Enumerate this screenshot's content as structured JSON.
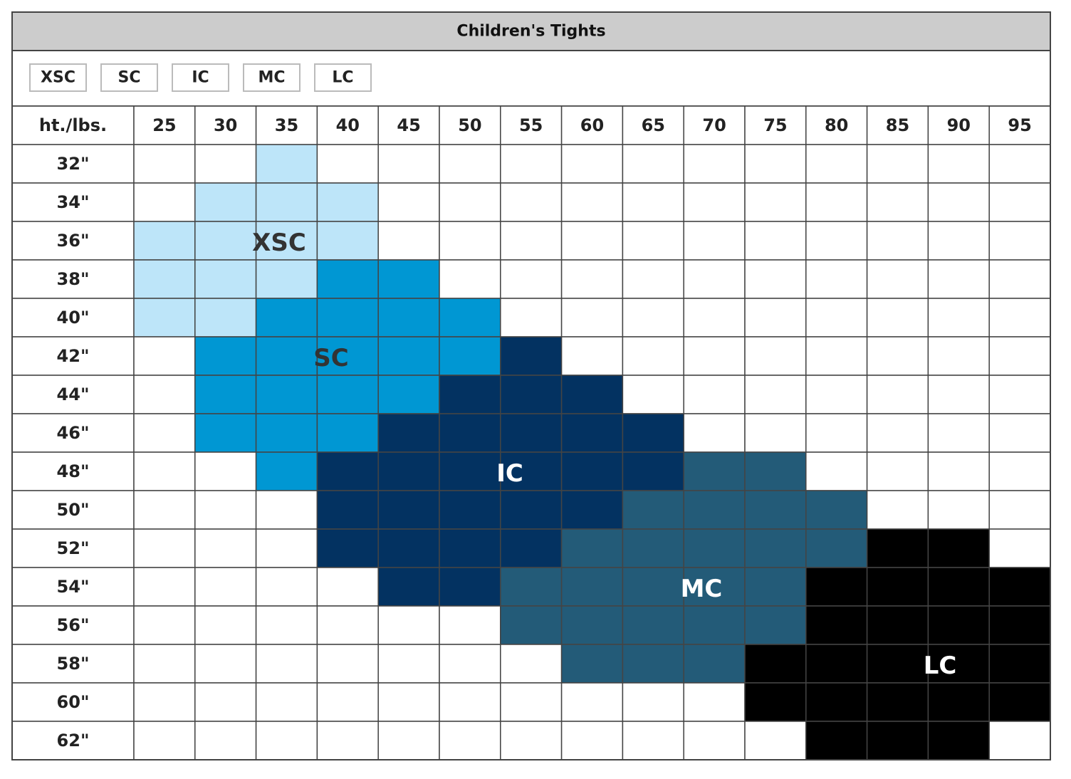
{
  "title": "Children's Tights",
  "sizes": [
    {
      "label": "XSC",
      "color": "#bde5f9",
      "text_color": "#333333"
    },
    {
      "label": "SC",
      "color": "#0097d3",
      "text_color": "#333333"
    },
    {
      "label": "IC",
      "color": "#033261",
      "text_color": "#ffffff"
    },
    {
      "label": "MC",
      "color": "#235b78",
      "text_color": "#ffffff"
    },
    {
      "label": "LC",
      "color": "#000000",
      "text_color": "#ffffff"
    }
  ],
  "corner_header": "ht./lbs.",
  "weights": [
    25,
    30,
    35,
    40,
    45,
    50,
    55,
    60,
    65,
    70,
    75,
    80,
    85,
    90,
    95
  ],
  "rows": [
    {
      "height": "32\"",
      "fills": [
        null,
        null,
        0,
        null,
        null,
        null,
        null,
        null,
        null,
        null,
        null,
        null,
        null,
        null,
        null
      ]
    },
    {
      "height": "34\"",
      "fills": [
        null,
        0,
        0,
        0,
        null,
        null,
        null,
        null,
        null,
        null,
        null,
        null,
        null,
        null,
        null
      ]
    },
    {
      "height": "36\"",
      "fills": [
        0,
        0,
        0,
        0,
        null,
        null,
        null,
        null,
        null,
        null,
        null,
        null,
        null,
        null,
        null
      ]
    },
    {
      "height": "38\"",
      "fills": [
        0,
        0,
        0,
        1,
        1,
        null,
        null,
        null,
        null,
        null,
        null,
        null,
        null,
        null,
        null
      ]
    },
    {
      "height": "40\"",
      "fills": [
        0,
        0,
        1,
        1,
        1,
        1,
        null,
        null,
        null,
        null,
        null,
        null,
        null,
        null,
        null
      ]
    },
    {
      "height": "42\"",
      "fills": [
        null,
        1,
        1,
        1,
        1,
        1,
        2,
        null,
        null,
        null,
        null,
        null,
        null,
        null,
        null
      ]
    },
    {
      "height": "44\"",
      "fills": [
        null,
        1,
        1,
        1,
        1,
        2,
        2,
        2,
        null,
        null,
        null,
        null,
        null,
        null,
        null
      ]
    },
    {
      "height": "46\"",
      "fills": [
        null,
        1,
        1,
        1,
        2,
        2,
        2,
        2,
        2,
        null,
        null,
        null,
        null,
        null,
        null
      ]
    },
    {
      "height": "48\"",
      "fills": [
        null,
        null,
        1,
        2,
        2,
        2,
        2,
        2,
        2,
        3,
        3,
        null,
        null,
        null,
        null
      ]
    },
    {
      "height": "50\"",
      "fills": [
        null,
        null,
        null,
        2,
        2,
        2,
        2,
        2,
        3,
        3,
        3,
        3,
        null,
        null,
        null
      ]
    },
    {
      "height": "52\"",
      "fills": [
        null,
        null,
        null,
        2,
        2,
        2,
        2,
        3,
        3,
        3,
        3,
        3,
        4,
        4,
        null
      ]
    },
    {
      "height": "54\"",
      "fills": [
        null,
        null,
        null,
        null,
        2,
        2,
        3,
        3,
        3,
        3,
        3,
        4,
        4,
        4,
        4
      ]
    },
    {
      "height": "56\"",
      "fills": [
        null,
        null,
        null,
        null,
        null,
        null,
        3,
        3,
        3,
        3,
        3,
        4,
        4,
        4,
        4
      ]
    },
    {
      "height": "58\"",
      "fills": [
        null,
        null,
        null,
        null,
        null,
        null,
        null,
        3,
        3,
        3,
        4,
        4,
        4,
        4,
        4
      ]
    },
    {
      "height": "60\"",
      "fills": [
        null,
        null,
        null,
        null,
        null,
        null,
        null,
        null,
        null,
        null,
        4,
        4,
        4,
        4,
        4
      ]
    },
    {
      "height": "62\"",
      "fills": [
        null,
        null,
        null,
        null,
        null,
        null,
        null,
        null,
        null,
        null,
        null,
        4,
        4,
        4,
        null
      ]
    }
  ]
}
